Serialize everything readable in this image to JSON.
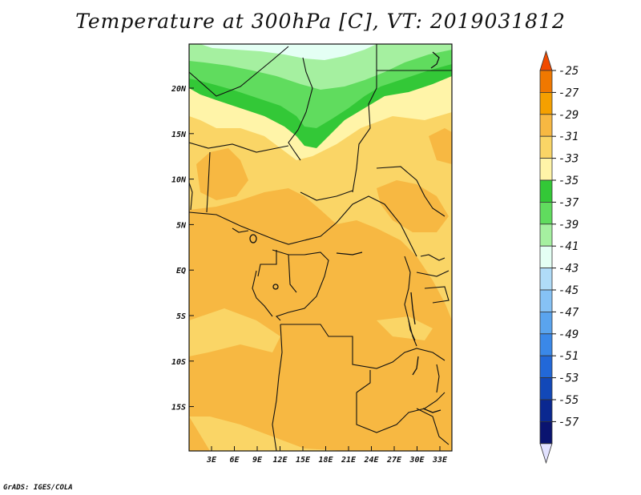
{
  "title": "Temperature at 300hPa [C], VT: 2019031812",
  "credit": "GrADS: IGES/COLA",
  "map": {
    "lat_ticks": [
      "20N",
      "15N",
      "10N",
      "5N",
      "EQ",
      "5S",
      "10S",
      "15S"
    ],
    "lon_ticks": [
      "3E",
      "6E",
      "9E",
      "12E",
      "15E",
      "18E",
      "21E",
      "24E",
      "27E",
      "30E",
      "33E"
    ]
  },
  "colorbar": {
    "labels": [
      "-25",
      "-27",
      "-29",
      "-31",
      "-33",
      "-35",
      "-37",
      "-39",
      "-41",
      "-43",
      "-45",
      "-47",
      "-49",
      "-51",
      "-53",
      "-55",
      "-57"
    ],
    "colors": [
      "#f04a00",
      "#f07800",
      "#f5a000",
      "#f7b842",
      "#fad566",
      "#fff4a8",
      "#33c837",
      "#60dc5e",
      "#a5f0a0",
      "#e4fff4",
      "#b0dcf8",
      "#86c2f5",
      "#5aa4ee",
      "#3a88e8",
      "#2268d8",
      "#1248b8",
      "#0a2890",
      "#0a1470"
    ],
    "end_bottom_color": "#e2e2ff"
  }
}
